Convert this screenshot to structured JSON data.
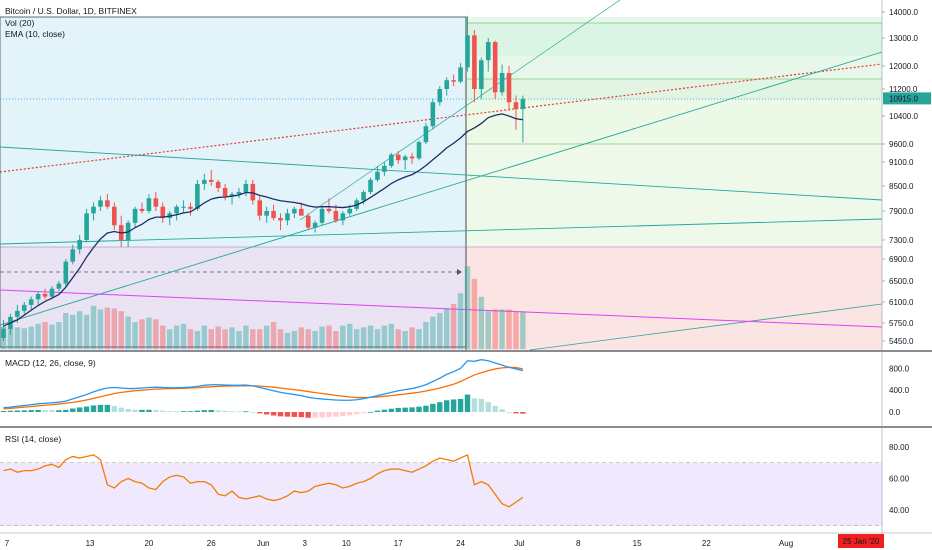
{
  "header": {
    "title": "Bitcoin / U.S. Dollar, 1D, BITFINEX",
    "vol_label": "Vol (20)",
    "ema_label": "EMA (10, close)",
    "macd_label": "MACD (12, 26, close, 9)",
    "rsi_label": "RSI (14, close)"
  },
  "price_axis": {
    "ticks": [
      "14000.0",
      "13000.0",
      "12000.0",
      "11200.0",
      "10400.0",
      "9600.0",
      "9100.0",
      "8500.0",
      "7900.0",
      "7300.0",
      "6900.0",
      "6500.0",
      "6100.0",
      "5750.0",
      "5450.0"
    ],
    "last_price": "10915.0"
  },
  "macd_axis": {
    "ticks": [
      "800.0",
      "400.0",
      "0.0"
    ]
  },
  "rsi_axis": {
    "ticks": [
      "80.00",
      "60.00",
      "40.00"
    ]
  },
  "time_axis": {
    "ticks": [
      "7",
      "13",
      "20",
      "26",
      "Jun",
      "3",
      "10",
      "17",
      "24",
      "Jul",
      "8",
      "15",
      "22",
      "Aug"
    ],
    "current_date": "25 Jan '20"
  },
  "colors": {
    "up": "#26a69a",
    "down": "#ef5350",
    "ema": "#1f2d66",
    "macd": "#2196f3",
    "signal": "#ff6d00",
    "rsi": "#f57c00",
    "pitchfork_green": "#26a69a",
    "trend_red": "#e53935",
    "trend_magenta": "#e040fb",
    "date_badge": "#ef1f1f"
  },
  "chart_data": [
    {
      "type": "candlestick",
      "title": "Bitcoin / U.S. Dollar, 1D, BITFINEX",
      "ylim": [
        5300,
        14500
      ],
      "ohlc": [
        [
          5500,
          5800,
          5450,
          5650
        ],
        [
          5650,
          5900,
          5550,
          5850
        ],
        [
          5850,
          6050,
          5750,
          5950
        ],
        [
          5950,
          6100,
          5900,
          6050
        ],
        [
          6050,
          6200,
          5950,
          6150
        ],
        [
          6150,
          6300,
          6050,
          6250
        ],
        [
          6250,
          6350,
          6150,
          6200
        ],
        [
          6200,
          6400,
          6150,
          6350
        ],
        [
          6350,
          6500,
          6300,
          6450
        ],
        [
          6450,
          6900,
          6400,
          6850
        ],
        [
          6850,
          7200,
          6800,
          7100
        ],
        [
          7100,
          7400,
          7000,
          7300
        ],
        [
          7300,
          7950,
          7250,
          7850
        ],
        [
          7850,
          8100,
          7700,
          8000
        ],
        [
          8000,
          8250,
          7900,
          8150
        ],
        [
          8150,
          8300,
          7950,
          8000
        ],
        [
          8000,
          8100,
          7500,
          7600
        ],
        [
          7600,
          7800,
          7150,
          7300
        ],
        [
          7300,
          7700,
          7150,
          7650
        ],
        [
          7650,
          8000,
          7550,
          7950
        ],
        [
          7950,
          8100,
          7850,
          7900
        ],
        [
          7900,
          8300,
          7850,
          8200
        ],
        [
          8200,
          8350,
          7900,
          8000
        ],
        [
          8000,
          8100,
          7650,
          7750
        ],
        [
          7750,
          7900,
          7600,
          7850
        ],
        [
          7850,
          8050,
          7700,
          8000
        ],
        [
          8000,
          8150,
          7850,
          8000
        ],
        [
          8000,
          8100,
          7800,
          7950
        ],
        [
          7950,
          8650,
          7900,
          8550
        ],
        [
          8550,
          8800,
          8400,
          8650
        ],
        [
          8650,
          8900,
          8500,
          8600
        ],
        [
          8600,
          8650,
          8350,
          8450
        ],
        [
          8450,
          8550,
          8150,
          8250
        ],
        [
          8250,
          8350,
          8050,
          8300
        ],
        [
          8300,
          8450,
          8200,
          8350
        ],
        [
          8350,
          8650,
          8250,
          8550
        ],
        [
          8550,
          8650,
          8050,
          8150
        ],
        [
          8150,
          8250,
          7700,
          7800
        ],
        [
          7800,
          8000,
          7650,
          7900
        ],
        [
          7900,
          8050,
          7700,
          7750
        ],
        [
          7750,
          7850,
          7500,
          7700
        ],
        [
          7700,
          7950,
          7600,
          7850
        ],
        [
          7850,
          8000,
          7750,
          7950
        ],
        [
          7950,
          8100,
          7850,
          7800
        ],
        [
          7800,
          7850,
          7500,
          7550
        ],
        [
          7550,
          7700,
          7450,
          7650
        ],
        [
          7650,
          8000,
          7600,
          7950
        ],
        [
          7950,
          8200,
          7850,
          7900
        ],
        [
          7900,
          8050,
          7650,
          7700
        ],
        [
          7700,
          7900,
          7600,
          7850
        ],
        [
          7850,
          8050,
          7800,
          7950
        ],
        [
          7950,
          8200,
          7900,
          8150
        ],
        [
          8150,
          8400,
          8050,
          8350
        ],
        [
          8350,
          8700,
          8300,
          8650
        ],
        [
          8650,
          9000,
          8600,
          8850
        ],
        [
          8850,
          9100,
          8750,
          9000
        ],
        [
          9000,
          9350,
          8950,
          9300
        ],
        [
          9300,
          9400,
          9050,
          9150
        ],
        [
          9150,
          9300,
          8900,
          9250
        ],
        [
          9250,
          9350,
          9050,
          9200
        ],
        [
          9200,
          9700,
          9150,
          9650
        ],
        [
          9650,
          10200,
          9600,
          10100
        ],
        [
          10100,
          10900,
          10000,
          10800
        ],
        [
          10800,
          11300,
          10700,
          11200
        ],
        [
          11200,
          11600,
          11000,
          11500
        ],
        [
          11500,
          11700,
          11300,
          11450
        ],
        [
          11450,
          12100,
          11400,
          11950
        ],
        [
          11950,
          13850,
          11800,
          13100
        ],
        [
          13100,
          13300,
          10800,
          11200
        ],
        [
          11200,
          12300,
          10900,
          12200
        ],
        [
          12200,
          13000,
          11800,
          12850
        ],
        [
          12850,
          12900,
          10900,
          11100
        ],
        [
          11100,
          12050,
          11000,
          11750
        ],
        [
          11750,
          12000,
          10600,
          10800
        ],
        [
          10800,
          11000,
          10000,
          10600
        ],
        [
          10600,
          11000,
          9650,
          10900
        ]
      ],
      "ema10": [
        5700,
        5750,
        5800,
        5880,
        5960,
        6040,
        6110,
        6170,
        6240,
        6380,
        6560,
        6730,
        6940,
        7140,
        7320,
        7440,
        7470,
        7440,
        7460,
        7550,
        7620,
        7720,
        7770,
        7770,
        7790,
        7820,
        7860,
        7880,
        7980,
        8090,
        8180,
        8220,
        8230,
        8250,
        8280,
        8340,
        8330,
        8270,
        8230,
        8180,
        8140,
        8120,
        8100,
        8070,
        8020,
        7990,
        8000,
        8000,
        7990,
        7980,
        8000,
        8040,
        8120,
        8220,
        8330,
        8440,
        8560,
        8650,
        8720,
        8780,
        8880,
        9010,
        9160,
        9320,
        9490,
        9620,
        9770,
        9950,
        10050,
        10180,
        10350,
        10420,
        10460,
        10400,
        10320,
        10290
      ],
      "volume": [
        0.25,
        0.24,
        0.24,
        0.23,
        0.25,
        0.28,
        0.3,
        0.27,
        0.3,
        0.4,
        0.38,
        0.42,
        0.38,
        0.48,
        0.44,
        0.46,
        0.45,
        0.42,
        0.36,
        0.3,
        0.33,
        0.35,
        0.33,
        0.26,
        0.22,
        0.26,
        0.28,
        0.22,
        0.2,
        0.26,
        0.22,
        0.25,
        0.22,
        0.24,
        0.2,
        0.26,
        0.22,
        0.22,
        0.26,
        0.3,
        0.22,
        0.18,
        0.2,
        0.24,
        0.22,
        0.2,
        0.25,
        0.26,
        0.2,
        0.26,
        0.28,
        0.22,
        0.24,
        0.26,
        0.22,
        0.26,
        0.28,
        0.22,
        0.2,
        0.24,
        0.22,
        0.3,
        0.36,
        0.4,
        0.45,
        0.5,
        0.62,
        0.92,
        0.78,
        0.58,
        0.42,
        0.44,
        0.44,
        0.44,
        0.42,
        0.42
      ],
      "macd": [
        80,
        90,
        105,
        120,
        135,
        150,
        160,
        170,
        180,
        200,
        240,
        280,
        320,
        370,
        410,
        440,
        450,
        440,
        430,
        430,
        440,
        450,
        455,
        450,
        445,
        445,
        450,
        455,
        470,
        490,
        500,
        500,
        495,
        490,
        490,
        495,
        480,
        450,
        420,
        390,
        360,
        340,
        320,
        300,
        270,
        250,
        240,
        230,
        220,
        215,
        215,
        225,
        245,
        270,
        300,
        330,
        360,
        390,
        410,
        430,
        460,
        500,
        560,
        620,
        690,
        740,
        800,
        940,
        930,
        960,
        940,
        900,
        860,
        820,
        790,
        760
      ],
      "signal": [
        60,
        68,
        78,
        90,
        100,
        112,
        124,
        136,
        146,
        160,
        176,
        196,
        220,
        250,
        280,
        310,
        340,
        360,
        375,
        390,
        400,
        410,
        420,
        425,
        430,
        432,
        435,
        440,
        445,
        455,
        462,
        470,
        475,
        478,
        480,
        482,
        480,
        475,
        465,
        455,
        440,
        425,
        410,
        395,
        375,
        355,
        340,
        322,
        305,
        290,
        275,
        265,
        265,
        268,
        275,
        288,
        300,
        315,
        330,
        345,
        362,
        385,
        410,
        440,
        475,
        510,
        560,
        620,
        680,
        720,
        760,
        790,
        810,
        820,
        815,
        790
      ],
      "rsi": [
        65,
        66,
        64,
        65,
        65,
        66,
        68,
        69,
        67,
        72,
        74,
        73,
        74,
        75,
        72,
        56,
        54,
        58,
        60,
        58,
        57,
        54,
        53,
        58,
        61,
        62,
        61,
        57,
        58,
        58,
        56,
        50,
        49,
        52,
        48,
        47,
        48,
        49,
        47,
        46,
        47,
        49,
        52,
        51,
        52,
        55,
        56,
        57,
        56,
        54,
        55,
        57,
        58,
        60,
        63,
        65,
        66,
        66,
        65,
        64,
        66,
        68,
        71,
        73,
        72,
        71,
        73,
        75,
        56,
        58,
        56,
        50,
        44,
        42,
        45,
        48
      ]
    }
  ]
}
